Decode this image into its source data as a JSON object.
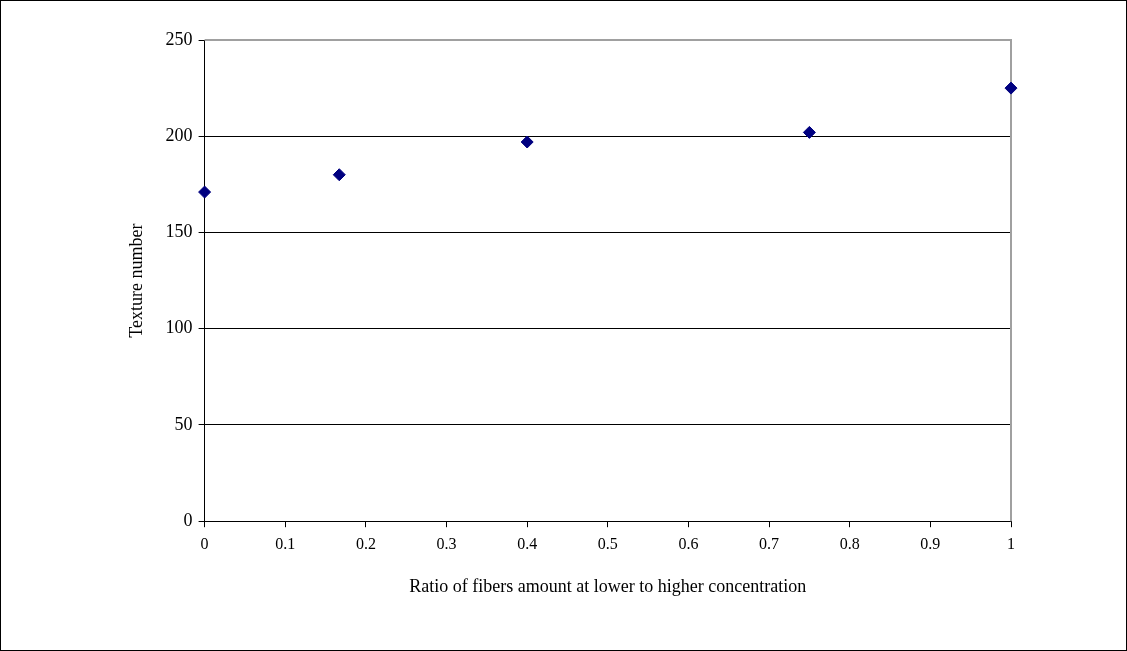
{
  "chart_data": {
    "type": "scatter",
    "xlabel": "Ratio of fibers amount at lower to higher concentration",
    "ylabel": "Texture number",
    "x": [
      0,
      0.167,
      0.4,
      0.75,
      1
    ],
    "series": [
      {
        "color": "#000080",
        "values": [
          171,
          180,
          197,
          202,
          225
        ]
      }
    ],
    "xlim": [
      0,
      1
    ],
    "xticks": [
      0,
      0.1,
      0.2,
      0.3,
      0.4,
      0.5,
      0.6,
      0.7,
      0.8,
      0.9,
      1
    ],
    "ylim": [
      0,
      250
    ],
    "yticks": [
      0,
      50,
      100,
      150,
      200,
      250
    ],
    "grid": "y",
    "legend": false,
    "marker": "diamond"
  }
}
